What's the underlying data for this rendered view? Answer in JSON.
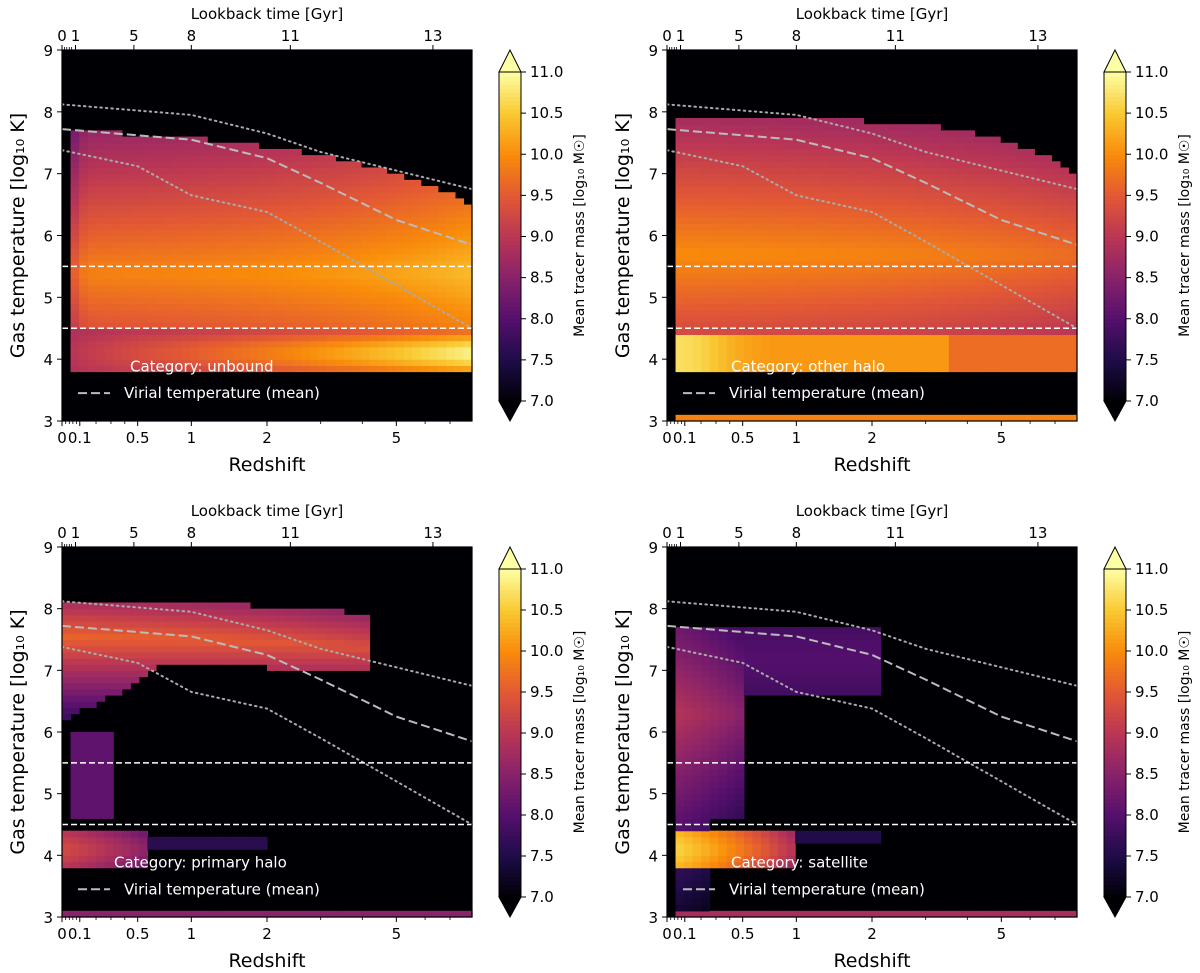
{
  "chart_data": [
    {
      "type": "heatmap",
      "category": "unbound",
      "legend_text": "Category: unbound",
      "legend_line": "Virial temperature (mean)",
      "xlabel": "Redshift",
      "ylabel": "Gas temperature [log₁₀ K]",
      "top_xlabel": "Lookback time [Gyr]",
      "colorbar_label": "Mean tracer mass [log₁₀ M☉]",
      "xlim_redshift": [
        0,
        8
      ],
      "ylim": [
        3,
        9
      ],
      "xticks": [
        "0",
        "0.1",
        "0.5",
        "1",
        "2",
        "5"
      ],
      "xtick_values": [
        0,
        0.1,
        0.5,
        1,
        2,
        5
      ],
      "yticks": [
        3,
        4,
        5,
        6,
        7,
        8,
        9
      ],
      "top_ticks": [
        "0",
        "1",
        "5",
        "8",
        "11",
        "13"
      ],
      "top_tick_values": [
        0,
        1,
        5,
        8,
        11,
        13
      ],
      "colorbar_ticks": [
        "7.0",
        "7.5",
        "8.0",
        "8.5",
        "9.0",
        "9.5",
        "10.0",
        "10.5",
        "11.0"
      ],
      "clim": [
        7,
        11
      ],
      "hlines": [
        4.5,
        5.5
      ],
      "virial_temp_mean": [
        [
          0,
          7.72
        ],
        [
          1,
          7.55
        ],
        [
          2,
          7.25
        ],
        [
          3,
          6.85
        ],
        [
          5,
          6.25
        ],
        [
          8,
          5.85
        ]
      ],
      "virial_temp_upper": [
        [
          0,
          8.12
        ],
        [
          1,
          7.95
        ],
        [
          2,
          7.65
        ],
        [
          3,
          7.35
        ],
        [
          5,
          7.05
        ],
        [
          8,
          6.75
        ]
      ],
      "virial_temp_lower": [
        [
          0,
          7.38
        ],
        [
          0.5,
          7.12
        ],
        [
          1,
          6.65
        ],
        [
          2,
          6.38
        ],
        [
          3,
          5.9
        ],
        [
          5,
          5.2
        ],
        [
          8,
          4.5
        ]
      ]
    },
    {
      "type": "heatmap",
      "category": "other halo",
      "legend_text": "Category: other halo",
      "legend_line": "Virial temperature (mean)",
      "xlabel": "Redshift",
      "ylabel": "Gas temperature [log₁₀ K]",
      "top_xlabel": "Lookback time [Gyr]",
      "colorbar_label": "Mean tracer mass [log₁₀ M☉]",
      "xlim_redshift": [
        0,
        8
      ],
      "ylim": [
        3,
        9
      ],
      "xticks": [
        "0",
        "0.1",
        "0.5",
        "1",
        "2",
        "5"
      ],
      "xtick_values": [
        0,
        0.1,
        0.5,
        1,
        2,
        5
      ],
      "yticks": [
        3,
        4,
        5,
        6,
        7,
        8,
        9
      ],
      "top_ticks": [
        "0",
        "1",
        "5",
        "8",
        "11",
        "13"
      ],
      "top_tick_values": [
        0,
        1,
        5,
        8,
        11,
        13
      ],
      "colorbar_ticks": [
        "7.0",
        "7.5",
        "8.0",
        "8.5",
        "9.0",
        "9.5",
        "10.0",
        "10.5",
        "11.0"
      ],
      "clim": [
        7,
        11
      ],
      "hlines": [
        4.5,
        5.5
      ],
      "virial_temp_mean": [
        [
          0,
          7.72
        ],
        [
          1,
          7.55
        ],
        [
          2,
          7.25
        ],
        [
          3,
          6.85
        ],
        [
          5,
          6.25
        ],
        [
          8,
          5.85
        ]
      ],
      "virial_temp_upper": [
        [
          0,
          8.12
        ],
        [
          1,
          7.95
        ],
        [
          2,
          7.65
        ],
        [
          3,
          7.35
        ],
        [
          5,
          7.05
        ],
        [
          8,
          6.75
        ]
      ],
      "virial_temp_lower": [
        [
          0,
          7.38
        ],
        [
          0.5,
          7.12
        ],
        [
          1,
          6.65
        ],
        [
          2,
          6.38
        ],
        [
          3,
          5.9
        ],
        [
          5,
          5.2
        ],
        [
          8,
          4.5
        ]
      ]
    },
    {
      "type": "heatmap",
      "category": "primary halo",
      "legend_text": "Category: primary halo",
      "legend_line": "Virial temperature (mean)",
      "xlabel": "Redshift",
      "ylabel": "Gas temperature [log₁₀ K]",
      "top_xlabel": "Lookback time [Gyr]",
      "colorbar_label": "Mean tracer mass [log₁₀ M☉]",
      "xlim_redshift": [
        0,
        8
      ],
      "ylim": [
        3,
        9
      ],
      "xticks": [
        "0",
        "0.1",
        "0.5",
        "1",
        "2",
        "5"
      ],
      "xtick_values": [
        0,
        0.1,
        0.5,
        1,
        2,
        5
      ],
      "yticks": [
        3,
        4,
        5,
        6,
        7,
        8,
        9
      ],
      "top_ticks": [
        "0",
        "1",
        "5",
        "8",
        "11",
        "13"
      ],
      "top_tick_values": [
        0,
        1,
        5,
        8,
        11,
        13
      ],
      "colorbar_ticks": [
        "7.0",
        "7.5",
        "8.0",
        "8.5",
        "9.0",
        "9.5",
        "10.0",
        "10.5",
        "11.0"
      ],
      "clim": [
        7,
        11
      ],
      "hlines": [
        4.5,
        5.5
      ],
      "virial_temp_mean": [
        [
          0,
          7.72
        ],
        [
          1,
          7.55
        ],
        [
          2,
          7.25
        ],
        [
          3,
          6.85
        ],
        [
          5,
          6.25
        ],
        [
          8,
          5.85
        ]
      ],
      "virial_temp_upper": [
        [
          0,
          8.12
        ],
        [
          1,
          7.95
        ],
        [
          2,
          7.65
        ],
        [
          3,
          7.35
        ],
        [
          5,
          7.05
        ],
        [
          8,
          6.75
        ]
      ],
      "virial_temp_lower": [
        [
          0,
          7.38
        ],
        [
          0.5,
          7.12
        ],
        [
          1,
          6.65
        ],
        [
          2,
          6.38
        ],
        [
          3,
          5.9
        ],
        [
          5,
          5.2
        ],
        [
          8,
          4.5
        ]
      ]
    },
    {
      "type": "heatmap",
      "category": "satellite",
      "legend_text": "Category: satellite",
      "legend_line": "Virial temperature (mean)",
      "xlabel": "Redshift",
      "ylabel": "Gas temperature [log₁₀ K]",
      "top_xlabel": "Lookback time [Gyr]",
      "colorbar_label": "Mean tracer mass [log₁₀ M☉]",
      "xlim_redshift": [
        0,
        8
      ],
      "ylim": [
        3,
        9
      ],
      "xticks": [
        "0",
        "0.1",
        "0.5",
        "1",
        "2",
        "5"
      ],
      "xtick_values": [
        0,
        0.1,
        0.5,
        1,
        2,
        5
      ],
      "yticks": [
        3,
        4,
        5,
        6,
        7,
        8,
        9
      ],
      "top_ticks": [
        "0",
        "1",
        "5",
        "8",
        "11",
        "13"
      ],
      "top_tick_values": [
        0,
        1,
        5,
        8,
        11,
        13
      ],
      "colorbar_ticks": [
        "7.0",
        "7.5",
        "8.0",
        "8.5",
        "9.0",
        "9.5",
        "10.0",
        "10.5",
        "11.0"
      ],
      "clim": [
        7,
        11
      ],
      "hlines": [
        4.5,
        5.5
      ],
      "virial_temp_mean": [
        [
          0,
          7.72
        ],
        [
          1,
          7.55
        ],
        [
          2,
          7.25
        ],
        [
          3,
          6.85
        ],
        [
          5,
          6.25
        ],
        [
          8,
          5.85
        ]
      ],
      "virial_temp_upper": [
        [
          0,
          8.12
        ],
        [
          1,
          7.95
        ],
        [
          2,
          7.65
        ],
        [
          3,
          7.35
        ],
        [
          5,
          7.05
        ],
        [
          8,
          6.75
        ]
      ],
      "virial_temp_lower": [
        [
          0,
          7.38
        ],
        [
          0.5,
          7.12
        ],
        [
          1,
          6.65
        ],
        [
          2,
          6.38
        ],
        [
          3,
          5.9
        ],
        [
          5,
          5.2
        ],
        [
          8,
          4.5
        ]
      ]
    }
  ],
  "colors": {
    "background": "#000004",
    "virial_mean_line": "#bbbbbb",
    "virial_band_line": "#aaaaaa",
    "hline": "#ffffff",
    "legend_text": "#ffffff"
  }
}
